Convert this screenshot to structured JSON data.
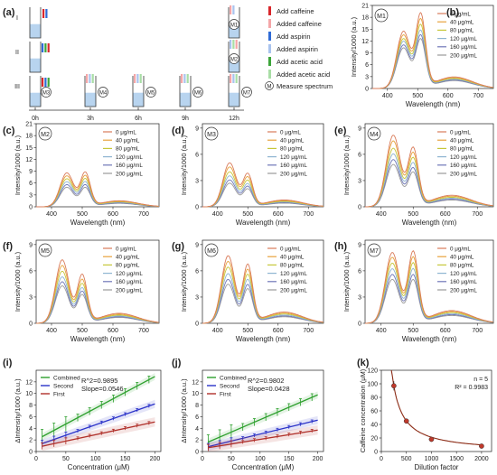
{
  "figure": {
    "panel_letters": [
      "(a)",
      "(b)",
      "(c)",
      "(d)",
      "(e)",
      "(f)",
      "(g)",
      "(h)",
      "(i)",
      "(j)",
      "(k)"
    ]
  },
  "schematic": {
    "row_labels": [
      "I",
      "II",
      "III"
    ],
    "time_labels": [
      "0h",
      "3h",
      "6h",
      "9h",
      "12h"
    ],
    "legend": [
      {
        "label": "Add caffeine",
        "color": "#d9262b",
        "kind": "add"
      },
      {
        "label": "Added caffeine",
        "color": "#f4a6a8",
        "kind": "added"
      },
      {
        "label": "Add aspirin",
        "color": "#2f6bd6",
        "kind": "add"
      },
      {
        "label": "Added aspirin",
        "color": "#a9c3ee",
        "kind": "added"
      },
      {
        "label": "Add acetic acid",
        "color": "#3da53a",
        "kind": "add"
      },
      {
        "label": "Added acetic acid",
        "color": "#a9dea6",
        "kind": "added"
      }
    ],
    "measure_symbol": "M",
    "measure_label": "Measure spectrum",
    "markers": [
      "M1",
      "M2",
      "M3",
      "M4",
      "M5",
      "M6",
      "M7"
    ],
    "liquid_color": "#b8d4ef"
  },
  "spectra_legend": [
    "0 μg/mL",
    "40 μg/mL",
    "80 μg/mL",
    "120 μg/mL",
    "160 μg/mL",
    "200 μg/mL"
  ],
  "spectra_colors": [
    "#d97b5a",
    "#e8a23c",
    "#c6c73a",
    "#8fb5d1",
    "#6f77b8",
    "#9a9a9a"
  ],
  "chart_data": [
    {
      "type": "line",
      "panel": "(b)",
      "marker": "M1",
      "xlabel": "Wavelength (nm)",
      "ylabel": "Intensity/1000 (a.u.)",
      "xlim": [
        350,
        750
      ],
      "ylim": [
        0,
        21
      ],
      "xticks": [
        400,
        500,
        600,
        700
      ],
      "yticks": [
        0,
        3,
        6,
        9,
        12,
        15,
        18,
        21
      ],
      "peaks": [
        {
          "x": 453,
          "values": [
            15.5,
            14.5,
            13.5,
            12.8,
            11.8,
            11.0
          ]
        },
        {
          "x": 510,
          "values": [
            19.5,
            18.0,
            16.5,
            15.0,
            13.8,
            12.8
          ]
        }
      ]
    },
    {
      "type": "line",
      "panel": "(c)",
      "marker": "M2",
      "xlabel": "Wavelength (nm)",
      "ylabel": "Intensity/1000 (a.u.)",
      "xlim": [
        350,
        750
      ],
      "ylim": [
        0,
        21
      ],
      "xticks": [
        400,
        500,
        600,
        700
      ],
      "yticks": [
        0,
        3,
        6,
        9,
        12,
        15,
        18,
        21
      ],
      "peaks": [
        {
          "x": 450,
          "values": [
            9.2,
            8.4,
            7.6,
            6.8,
            6.0,
            5.3
          ]
        },
        {
          "x": 510,
          "values": [
            9.0,
            8.1,
            7.3,
            6.5,
            5.7,
            5.0
          ]
        }
      ]
    },
    {
      "type": "line",
      "panel": "(d)",
      "marker": "M3",
      "xlabel": "Wavelength (nm)",
      "ylabel": "Intensity/1000 (a.u.)",
      "xlim": [
        350,
        750
      ],
      "ylim": [
        0,
        9.5
      ],
      "xticks": [
        400,
        500,
        600,
        700
      ],
      "yticks": [
        0,
        3,
        6,
        9
      ],
      "peaks": [
        {
          "x": 440,
          "values": [
            5.4,
            4.9,
            4.3,
            3.8,
            3.3,
            2.9
          ]
        },
        {
          "x": 500,
          "values": [
            3.9,
            3.5,
            3.1,
            2.7,
            2.4,
            2.1
          ]
        }
      ]
    },
    {
      "type": "line",
      "panel": "(e)",
      "marker": "M4",
      "xlabel": "Wavelength (nm)",
      "ylabel": "Intensity/1000 (a.u.)",
      "xlim": [
        350,
        750
      ],
      "ylim": [
        0,
        9.5
      ],
      "xticks": [
        400,
        500,
        600,
        700
      ],
      "yticks": [
        0,
        3,
        6,
        9
      ],
      "peaks": [
        {
          "x": 438,
          "values": [
            8.8,
            8.1,
            7.2,
            6.5,
            5.8,
            5.2
          ]
        },
        {
          "x": 500,
          "values": [
            7.0,
            6.4,
            5.8,
            5.2,
            4.6,
            4.1
          ]
        }
      ]
    },
    {
      "type": "line",
      "panel": "(f)",
      "marker": "M5",
      "xlabel": "Wavelength (nm)",
      "ylabel": "Intensity/1000 (a.u.)",
      "xlim": [
        350,
        750
      ],
      "ylim": [
        0,
        9.5
      ],
      "xticks": [
        400,
        500,
        600,
        700
      ],
      "yticks": [
        0,
        3,
        6,
        9
      ],
      "peaks": [
        {
          "x": 435,
          "values": [
            7.8,
            7.1,
            6.4,
            5.7,
            5.1,
            4.6
          ]
        },
        {
          "x": 500,
          "values": [
            5.8,
            5.2,
            4.7,
            4.2,
            3.8,
            3.4
          ]
        }
      ]
    },
    {
      "type": "line",
      "panel": "(g)",
      "marker": "M6",
      "xlabel": "Wavelength (nm)",
      "ylabel": "Intensity/1000 (a.u.)",
      "xlim": [
        350,
        750
      ],
      "ylim": [
        0,
        9.5
      ],
      "xticks": [
        400,
        500,
        600,
        700
      ],
      "yticks": [
        0,
        3,
        6,
        9
      ],
      "peaks": [
        {
          "x": 435,
          "values": [
            8.3,
            7.6,
            6.9,
            6.1,
            5.4,
            4.8
          ]
        },
        {
          "x": 500,
          "values": [
            7.0,
            6.4,
            5.8,
            5.2,
            4.6,
            4.1
          ]
        }
      ]
    },
    {
      "type": "line",
      "panel": "(h)",
      "marker": "M7",
      "xlabel": "Wavelength (nm)",
      "ylabel": "Intensity/1000 (a.u.)",
      "xlim": [
        350,
        750
      ],
      "ylim": [
        0,
        9.5
      ],
      "xticks": [
        400,
        500,
        600,
        700
      ],
      "yticks": [
        0,
        3,
        6,
        9
      ],
      "peaks": [
        {
          "x": 435,
          "values": [
            8.7,
            8.1,
            7.4,
            6.7,
            6.0,
            5.4
          ]
        },
        {
          "x": 500,
          "values": [
            8.6,
            7.9,
            7.2,
            6.5,
            5.8,
            5.2
          ]
        }
      ]
    },
    {
      "type": "scatter",
      "panel": "(i)",
      "xlabel": "Concentration (μM)",
      "ylabel": "ΔIntensity/1000 (a.u.)",
      "xlim": [
        0,
        210
      ],
      "ylim": [
        0,
        14
      ],
      "xticks": [
        0,
        50,
        100,
        150,
        200
      ],
      "yticks": [
        0,
        2,
        4,
        6,
        8,
        10,
        12
      ],
      "annotation": [
        "R^2=0.9895",
        "Slope=0.0546"
      ],
      "series": [
        {
          "name": "Combined",
          "color": "#2ea02e",
          "slope": 0.0546,
          "intercept": 2.0
        },
        {
          "name": "Second",
          "color": "#2b33c9",
          "slope": 0.036,
          "intercept": 1.0
        },
        {
          "name": "First",
          "color": "#b0302a",
          "slope": 0.022,
          "intercept": 0.7
        }
      ]
    },
    {
      "type": "scatter",
      "panel": "(j)",
      "xlabel": "Concentration (μM)",
      "ylabel": "ΔIntensity/1000 (a.u.)",
      "xlim": [
        0,
        210
      ],
      "ylim": [
        0,
        14
      ],
      "xticks": [
        0,
        50,
        100,
        150,
        200
      ],
      "yticks": [
        0,
        2,
        4,
        6,
        8,
        10,
        12
      ],
      "annotation": [
        "R^2=0.9802",
        "Slope=0.0428"
      ],
      "series": [
        {
          "name": "Combined",
          "color": "#2ea02e",
          "slope": 0.0428,
          "intercept": 1.2
        },
        {
          "name": "Second",
          "color": "#2b33c9",
          "slope": 0.024,
          "intercept": 0.6
        },
        {
          "name": "First",
          "color": "#b0302a",
          "slope": 0.016,
          "intercept": 0.5
        }
      ]
    },
    {
      "type": "scatter",
      "panel": "(k)",
      "xlabel": "Dilution factor",
      "ylabel": "Caffeine concentration (μM)",
      "xlim": [
        0,
        2200
      ],
      "ylim": [
        0,
        120
      ],
      "xticks": [
        0,
        500,
        1000,
        1500,
        2000
      ],
      "yticks": [
        0,
        20,
        40,
        60,
        80,
        100,
        120
      ],
      "annotation": [
        "n = 5",
        "R² = 0.9983"
      ],
      "points": [
        {
          "x": 250,
          "y": 97
        },
        {
          "x": 500,
          "y": 45
        },
        {
          "x": 1000,
          "y": 18
        },
        {
          "x": 2000,
          "y": 8
        }
      ],
      "fit_color": "#8b2a14",
      "point_color": "#c0392b"
    }
  ]
}
